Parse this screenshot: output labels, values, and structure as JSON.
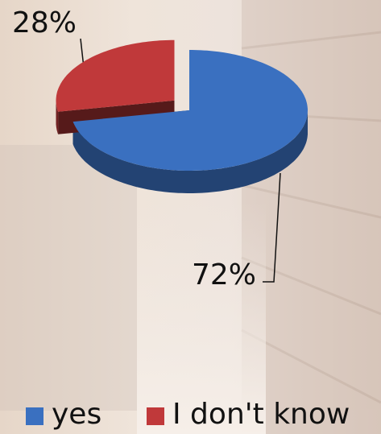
{
  "chart_data": {
    "type": "pie",
    "categories": [
      "yes",
      "I don't know"
    ],
    "values": [
      72,
      28
    ],
    "value_labels": [
      "72%",
      "28%"
    ],
    "colors": [
      "#3a70c0",
      "#c0393a"
    ],
    "legend": "bottom"
  }
}
